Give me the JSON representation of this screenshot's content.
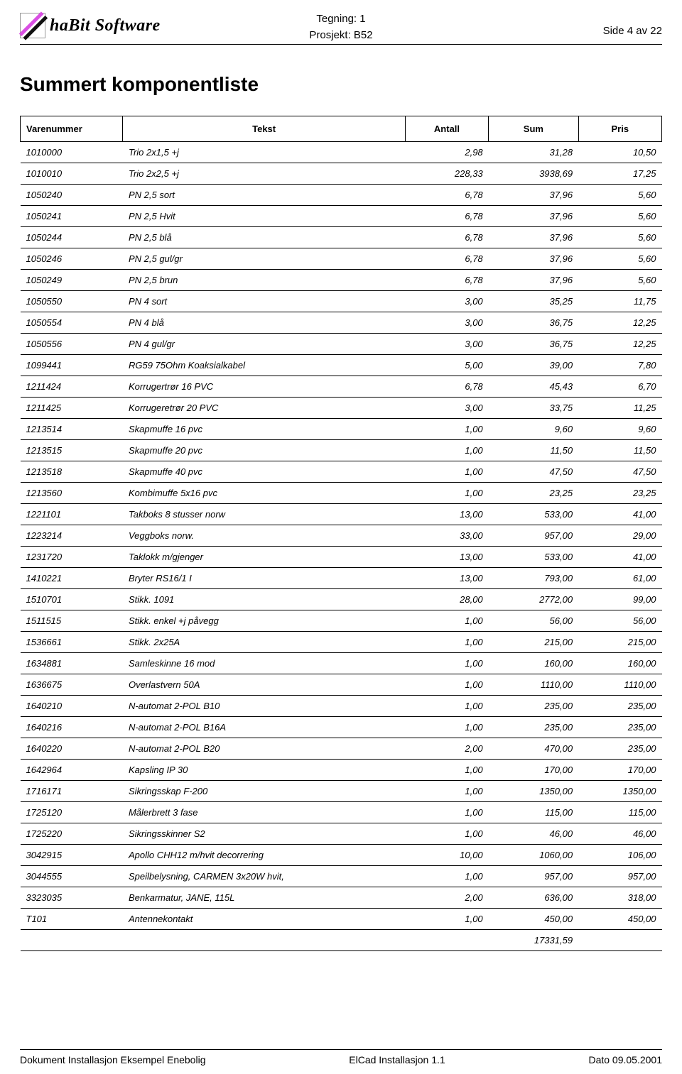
{
  "header": {
    "logo_text": "haBit Software",
    "tegning_label": "Tegning: 1",
    "prosjekt_label": "Prosjekt: B52",
    "side_label": "Side 4 av 22"
  },
  "title": "Summert komponentliste",
  "table": {
    "columns": [
      "Varenummer",
      "Tekst",
      "Antall",
      "Sum",
      "Pris"
    ],
    "column_widths_pct": [
      16,
      44,
      13,
      14,
      13
    ],
    "column_align": [
      "left",
      "left",
      "right",
      "right",
      "right"
    ],
    "header_fontsize": 13,
    "cell_fontsize": 13,
    "cell_fontstyle": "italic",
    "border_color": "#000000",
    "rows": [
      [
        "1010000",
        "Trio 2x1,5 +j",
        "2,98",
        "31,28",
        "10,50"
      ],
      [
        "1010010",
        "Trio 2x2,5 +j",
        "228,33",
        "3938,69",
        "17,25"
      ],
      [
        "1050240",
        "PN 2,5 sort",
        "6,78",
        "37,96",
        "5,60"
      ],
      [
        "1050241",
        "PN 2,5 Hvit",
        "6,78",
        "37,96",
        "5,60"
      ],
      [
        "1050244",
        "PN 2,5 blå",
        "6,78",
        "37,96",
        "5,60"
      ],
      [
        "1050246",
        "PN 2,5 gul/gr",
        "6,78",
        "37,96",
        "5,60"
      ],
      [
        "1050249",
        "PN 2,5 brun",
        "6,78",
        "37,96",
        "5,60"
      ],
      [
        "1050550",
        "PN 4 sort",
        "3,00",
        "35,25",
        "11,75"
      ],
      [
        "1050554",
        "PN 4 blå",
        "3,00",
        "36,75",
        "12,25"
      ],
      [
        "1050556",
        "PN 4 gul/gr",
        "3,00",
        "36,75",
        "12,25"
      ],
      [
        "1099441",
        "RG59 75Ohm Koaksialkabel",
        "5,00",
        "39,00",
        "7,80"
      ],
      [
        "1211424",
        "Korrugertrør 16 PVC",
        "6,78",
        "45,43",
        "6,70"
      ],
      [
        "1211425",
        "Korrugeretrør 20 PVC",
        "3,00",
        "33,75",
        "11,25"
      ],
      [
        "1213514",
        "Skapmuffe 16 pvc",
        "1,00",
        "9,60",
        "9,60"
      ],
      [
        "1213515",
        "Skapmuffe 20 pvc",
        "1,00",
        "11,50",
        "11,50"
      ],
      [
        "1213518",
        "Skapmuffe 40 pvc",
        "1,00",
        "47,50",
        "47,50"
      ],
      [
        "1213560",
        "Kombimuffe 5x16 pvc",
        "1,00",
        "23,25",
        "23,25"
      ],
      [
        "1221101",
        "Takboks 8 stusser norw",
        "13,00",
        "533,00",
        "41,00"
      ],
      [
        "1223214",
        "Veggboks norw.",
        "33,00",
        "957,00",
        "29,00"
      ],
      [
        "1231720",
        "Taklokk m/gjenger",
        "13,00",
        "533,00",
        "41,00"
      ],
      [
        "1410221",
        "Bryter RS16/1 I",
        "13,00",
        "793,00",
        "61,00"
      ],
      [
        "1510701",
        "Stikk. 1091",
        "28,00",
        "2772,00",
        "99,00"
      ],
      [
        "1511515",
        "Stikk. enkel +j påvegg",
        "1,00",
        "56,00",
        "56,00"
      ],
      [
        "1536661",
        "Stikk. 2x25A",
        "1,00",
        "215,00",
        "215,00"
      ],
      [
        "1634881",
        "Samleskinne 16 mod",
        "1,00",
        "160,00",
        "160,00"
      ],
      [
        "1636675",
        "Overlastvern 50A",
        "1,00",
        "1110,00",
        "1110,00"
      ],
      [
        "1640210",
        "N-automat 2-POL B10",
        "1,00",
        "235,00",
        "235,00"
      ],
      [
        "1640216",
        "N-automat 2-POL B16A",
        "1,00",
        "235,00",
        "235,00"
      ],
      [
        "1640220",
        "N-automat 2-POL B20",
        "2,00",
        "470,00",
        "235,00"
      ],
      [
        "1642964",
        "Kapsling IP 30",
        "1,00",
        "170,00",
        "170,00"
      ],
      [
        "1716171",
        "Sikringsskap F-200",
        "1,00",
        "1350,00",
        "1350,00"
      ],
      [
        "1725120",
        "Målerbrett 3 fase",
        "1,00",
        "115,00",
        "115,00"
      ],
      [
        "1725220",
        "Sikringsskinner S2",
        "1,00",
        "46,00",
        "46,00"
      ],
      [
        "3042915",
        "Apollo CHH12 m/hvit decorrering",
        "10,00",
        "1060,00",
        "106,00"
      ],
      [
        "3044555",
        "Speilbelysning, CARMEN 3x20W hvit,",
        "1,00",
        "957,00",
        "957,00"
      ],
      [
        "3323035",
        "Benkarmatur, JANE, 115L",
        "2,00",
        "636,00",
        "318,00"
      ],
      [
        "T101",
        "Antennekontakt",
        "1,00",
        "450,00",
        "450,00"
      ]
    ],
    "total_sum": "17331,59"
  },
  "footer": {
    "left": "Dokument Installasjon Eksempel Enebolig",
    "center": "ElCad Installasjon 1.1",
    "right": "Dato 09.05.2001"
  },
  "colors": {
    "background": "#ffffff",
    "text": "#000000",
    "border": "#000000",
    "logo_accent": "#d94fe3"
  },
  "typography": {
    "body_font": "Arial, Helvetica, sans-serif",
    "logo_font": "Georgia, Times New Roman, serif",
    "title_fontsize": 28,
    "header_fontsize": 15,
    "table_fontsize": 13,
    "footer_fontsize": 14
  }
}
